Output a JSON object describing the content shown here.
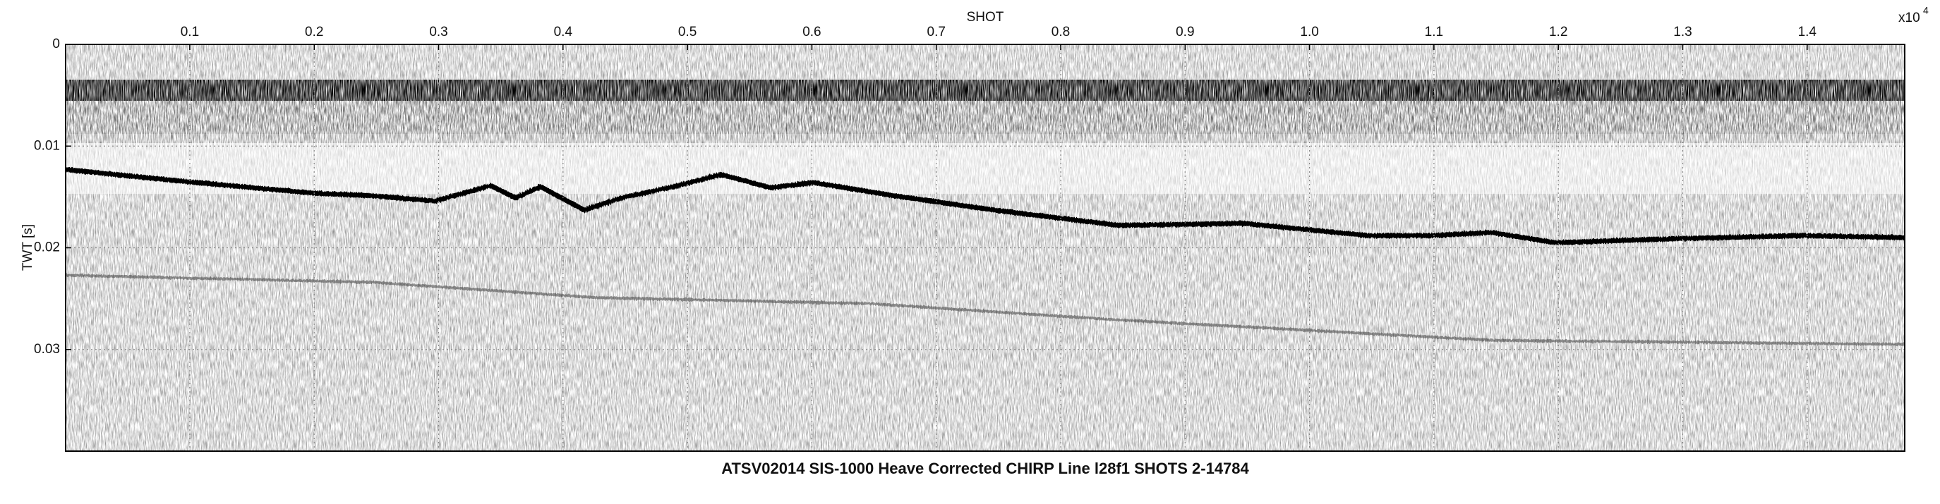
{
  "chart_data": {
    "type": "line",
    "title": "ATSV02014 SIS-1000 Heave Corrected CHIRP Line l28f1 SHOTS 2-14784",
    "xlabel": "SHOT",
    "ylabel": "TWT [s]",
    "x_multiplier": {
      "base": "x10",
      "exponent": "4"
    },
    "xlim": [
      0.0002,
      1.4784
    ],
    "ylim": [
      0,
      0.04
    ],
    "y_inverted": true,
    "xticks": [
      0.1,
      0.2,
      0.3,
      0.4,
      0.5,
      0.6,
      0.7,
      0.8,
      0.9,
      {
        "value": 1,
        "label": "1.0"
      },
      1.1,
      1.2,
      1.3,
      1.4
    ],
    "yticks": [
      0,
      0.01,
      0.02,
      0.03
    ],
    "grid": true,
    "series": [
      {
        "color": "#000000",
        "x": [
          0.0002,
          0.097,
          0.197,
          0.247,
          0.297,
          0.342,
          0.362,
          0.382,
          0.417,
          0.447,
          0.492,
          0.527,
          0.567,
          0.602,
          0.667,
          0.747,
          0.847,
          0.947,
          1.047,
          1.097,
          1.147,
          1.197,
          1.297,
          1.397,
          1.4784
        ],
        "values": [
          0.0123,
          0.0135,
          0.0146,
          0.0149,
          0.0154,
          0.0139,
          0.0151,
          0.014,
          0.0163,
          0.0151,
          0.0139,
          0.0128,
          0.0141,
          0.0136,
          0.0149,
          0.0163,
          0.0178,
          0.0176,
          0.0188,
          0.0188,
          0.0185,
          0.0195,
          0.0191,
          0.0188,
          0.019
        ]
      },
      {
        "color": "#3a3a3a",
        "x": [
          0.0002,
          0.247,
          0.427,
          0.647,
          0.847,
          1.147,
          1.4784
        ],
        "values": [
          0.0227,
          0.0234,
          0.0249,
          0.0255,
          0.0271,
          0.0291,
          0.0295
        ]
      }
    ]
  }
}
